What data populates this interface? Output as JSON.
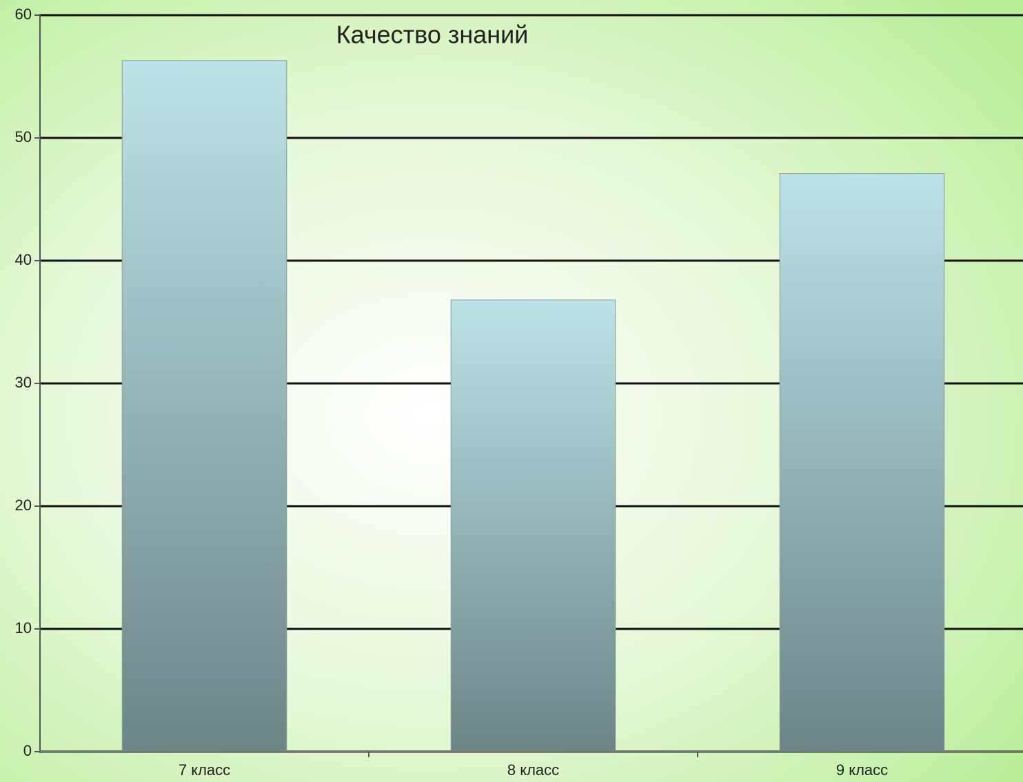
{
  "chart_data": {
    "type": "bar",
    "title": "Качество знаний",
    "categories": [
      "7 класс",
      "8 класс",
      "9 класс"
    ],
    "values": [
      56.3,
      36.8,
      47.1
    ],
    "ylim": [
      0,
      60
    ],
    "yticks": [
      0,
      10,
      20,
      30,
      40,
      50,
      60
    ],
    "grid": true
  }
}
